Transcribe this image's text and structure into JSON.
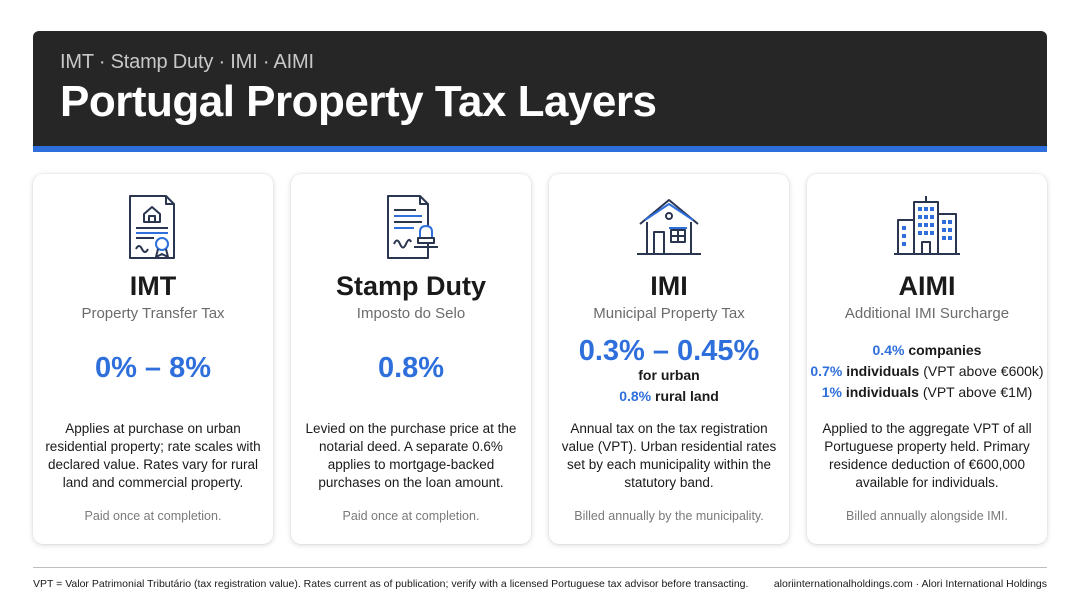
{
  "header": {
    "subtitle": "IMT · Stamp Duty · IMI · AIMI",
    "title": "Portugal Property Tax Layers"
  },
  "colors": {
    "accent": "#2f6fdc",
    "header_bg": "#262626"
  },
  "cards": [
    {
      "icon": "certificate-document-icon",
      "name": "IMT",
      "full": "Property Transfer Tax",
      "rate": "0% – 8%",
      "desc": "Applies at purchase on urban residential property; rate scales with declared value. Rates vary for rural land and commercial property.",
      "foot": "Paid once at completion."
    },
    {
      "icon": "stamp-document-icon",
      "name": "Stamp Duty",
      "full": "Imposto do Selo",
      "rate": "0.8%",
      "desc": "Levied on the purchase price at the notarial deed. A separate 0.6% applies to mortgage-backed purchases on the loan amount.",
      "foot": "Paid once at completion."
    },
    {
      "icon": "house-icon",
      "name": "IMI",
      "full": "Municipal Property Tax",
      "rate": "0.3% – 0.45%",
      "rate_urban_label": "for urban",
      "rate_rural_value": "0.8%",
      "rate_rural_label": "rural land",
      "desc": "Annual tax on the tax registration value (VPT). Urban residential rates set by each municipality within the statutory band.",
      "foot": "Billed annually by the municipality."
    },
    {
      "icon": "buildings-icon",
      "name": "AIMI",
      "full": "Additional IMI Surcharge",
      "rates": [
        {
          "value": "0.4%",
          "label": "companies",
          "note": ""
        },
        {
          "value": "0.7%",
          "label": "individuals",
          "note": "(VPT above €600k)"
        },
        {
          "value": "1%",
          "label": "individuals",
          "note": "(VPT above €1M)"
        }
      ],
      "desc": "Applied to the aggregate VPT of all Portuguese property held. Primary residence deduction of €600,000 available for individuals.",
      "foot": "Billed annually alongside IMI."
    }
  ],
  "footer": {
    "note": "VPT = Valor Patrimonial Tributário (tax registration value). Rates current as of publication; verify with a licensed Portuguese tax advisor before transacting.",
    "credit": "aloriinternationalholdings.com · Alori International Holdings"
  }
}
